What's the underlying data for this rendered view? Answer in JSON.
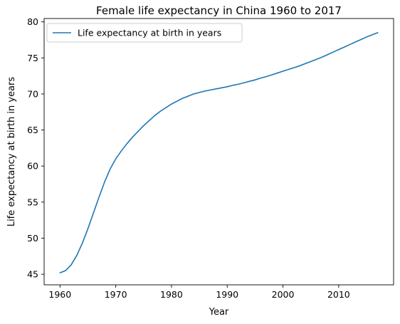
{
  "chart_data": {
    "type": "line",
    "title": "Female life expectancy in China 1960 to 2017",
    "xlabel": "Year",
    "ylabel": "Life expectancy at birth in years",
    "xlim": [
      1957.15,
      2019.85
    ],
    "ylim": [
      43.53,
      80.46
    ],
    "xticks": [
      1960,
      1970,
      1980,
      1990,
      2000,
      2010
    ],
    "yticks": [
      45,
      50,
      55,
      60,
      65,
      70,
      75,
      80
    ],
    "grid": false,
    "legend_position": "top-left",
    "series": [
      {
        "name": "Life expectancy at birth in years",
        "color": "#1f77b4",
        "x": [
          1960,
          1961,
          1962,
          1963,
          1964,
          1965,
          1966,
          1967,
          1968,
          1969,
          1970,
          1971,
          1972,
          1973,
          1974,
          1975,
          1976,
          1977,
          1978,
          1979,
          1980,
          1981,
          1982,
          1983,
          1984,
          1985,
          1986,
          1987,
          1988,
          1989,
          1990,
          1991,
          1992,
          1993,
          1994,
          1995,
          1996,
          1997,
          1998,
          1999,
          2000,
          2001,
          2002,
          2003,
          2004,
          2005,
          2006,
          2007,
          2008,
          2009,
          2010,
          2011,
          2012,
          2013,
          2014,
          2015,
          2016,
          2017
        ],
        "values": [
          45.2,
          45.5,
          46.3,
          47.6,
          49.3,
          51.3,
          53.5,
          55.7,
          57.8,
          59.6,
          61.0,
          62.1,
          63.1,
          64.0,
          64.8,
          65.6,
          66.3,
          67.0,
          67.6,
          68.1,
          68.6,
          69.0,
          69.4,
          69.7,
          70.0,
          70.2,
          70.4,
          70.55,
          70.7,
          70.85,
          71.0,
          71.2,
          71.35,
          71.55,
          71.75,
          71.95,
          72.2,
          72.4,
          72.65,
          72.9,
          73.15,
          73.4,
          73.65,
          73.9,
          74.2,
          74.5,
          74.8,
          75.1,
          75.45,
          75.8,
          76.15,
          76.5,
          76.85,
          77.2,
          77.55,
          77.9,
          78.2,
          78.5
        ]
      }
    ]
  }
}
